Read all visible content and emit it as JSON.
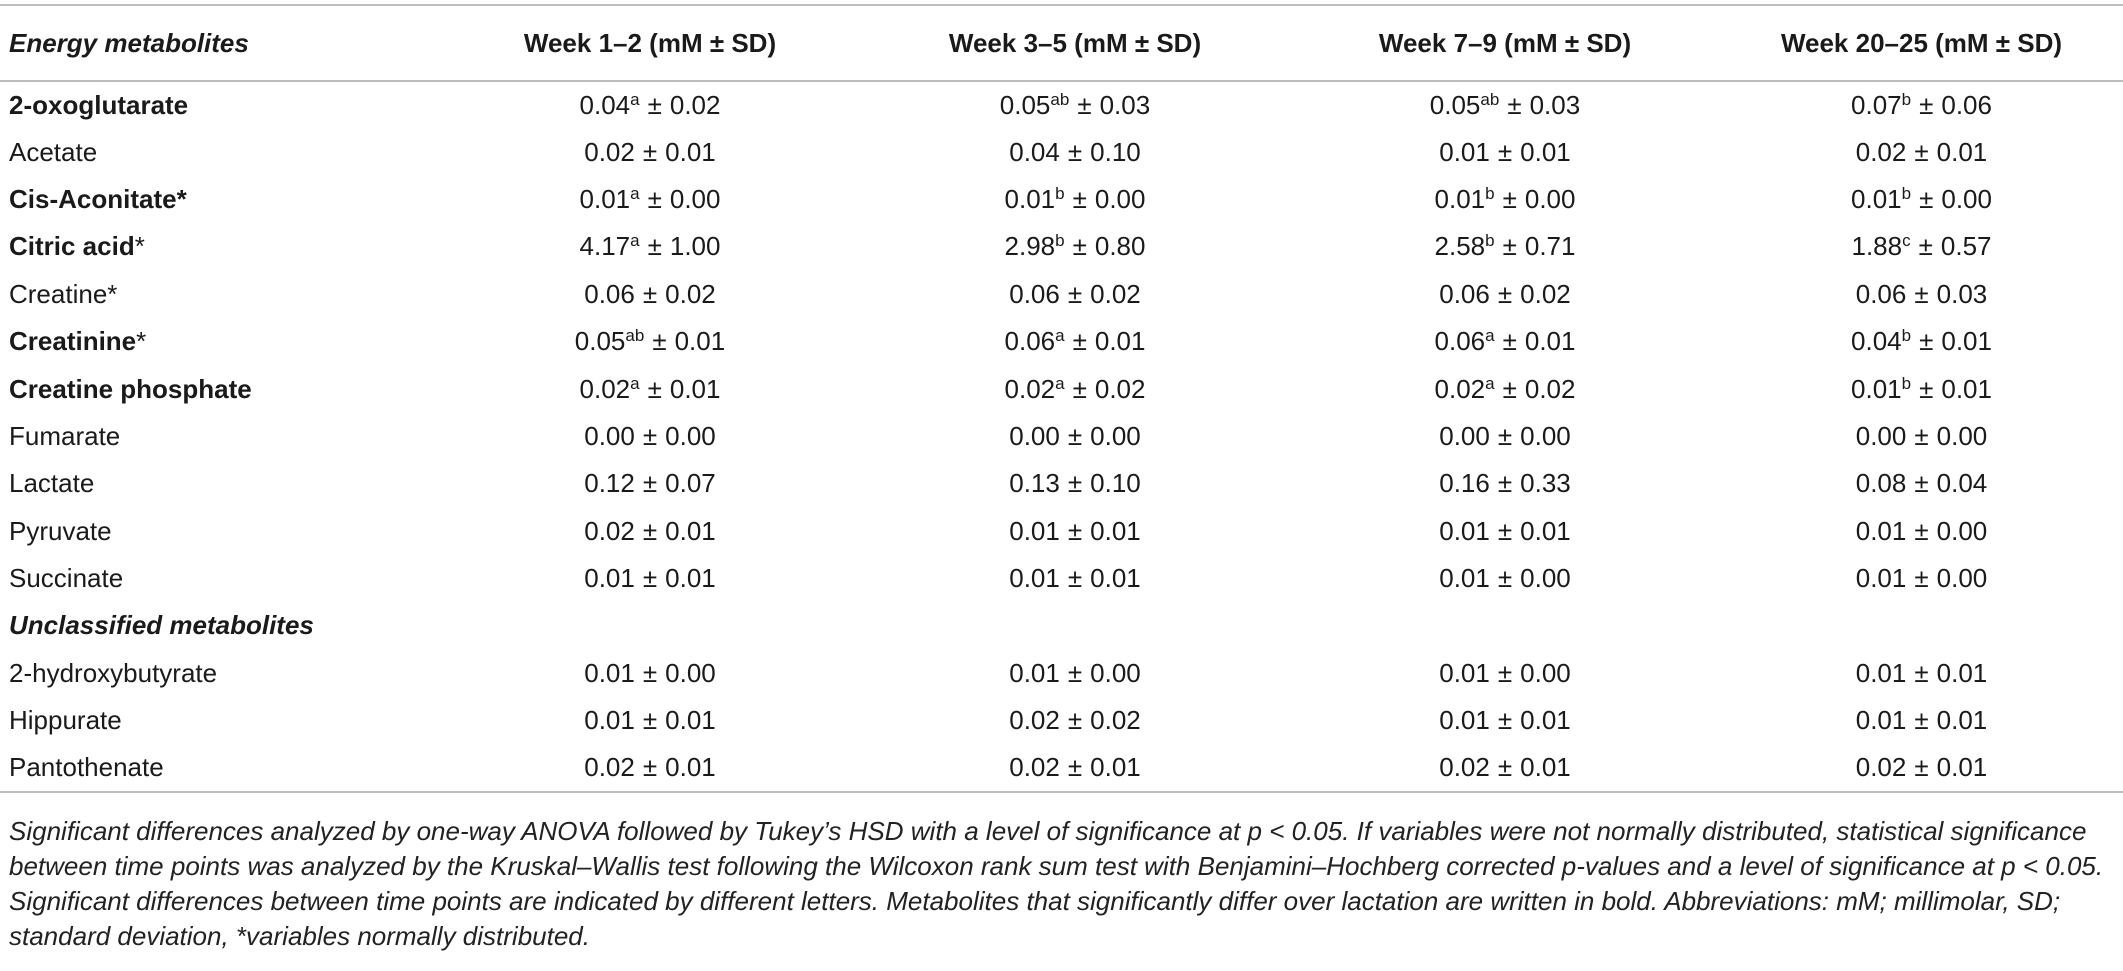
{
  "table": {
    "headers": [
      "Energy metabolites",
      "Week 1–2 (mM ± SD)",
      "Week 3–5 (mM ± SD)",
      "Week 7–9 (mM ± SD)",
      "Week 20–25 (mM ± SD)"
    ],
    "rows": [
      {
        "name": "2-oxoglutarate",
        "star": "",
        "star_bold": false,
        "bold": true,
        "section": false,
        "values": [
          {
            "mean": "0.04",
            "sup": "a",
            "sd": "0.02"
          },
          {
            "mean": "0.05",
            "sup": "ab",
            "sd": "0.03"
          },
          {
            "mean": "0.05",
            "sup": "ab",
            "sd": "0.03"
          },
          {
            "mean": "0.07",
            "sup": "b",
            "sd": "0.06"
          }
        ]
      },
      {
        "name": "Acetate",
        "star": "",
        "star_bold": false,
        "bold": false,
        "section": false,
        "values": [
          {
            "mean": "0.02",
            "sup": "",
            "sd": "0.01"
          },
          {
            "mean": "0.04",
            "sup": "",
            "sd": "0.10"
          },
          {
            "mean": "0.01",
            "sup": "",
            "sd": "0.01"
          },
          {
            "mean": "0.02",
            "sup": "",
            "sd": "0.01"
          }
        ]
      },
      {
        "name": "Cis-Aconitate",
        "star": "*",
        "star_bold": true,
        "bold": true,
        "section": false,
        "values": [
          {
            "mean": "0.01",
            "sup": "a",
            "sd": "0.00"
          },
          {
            "mean": "0.01",
            "sup": "b",
            "sd": "0.00"
          },
          {
            "mean": "0.01",
            "sup": "b",
            "sd": "0.00"
          },
          {
            "mean": "0.01",
            "sup": "b",
            "sd": "0.00"
          }
        ]
      },
      {
        "name": "Citric acid",
        "star": "*",
        "star_bold": false,
        "bold": true,
        "section": false,
        "values": [
          {
            "mean": "4.17",
            "sup": "a",
            "sd": "1.00"
          },
          {
            "mean": "2.98",
            "sup": "b",
            "sd": "0.80"
          },
          {
            "mean": "2.58",
            "sup": "b",
            "sd": "0.71"
          },
          {
            "mean": "1.88",
            "sup": "c",
            "sd": "0.57"
          }
        ]
      },
      {
        "name": "Creatine",
        "star": "*",
        "star_bold": false,
        "bold": false,
        "section": false,
        "values": [
          {
            "mean": "0.06",
            "sup": "",
            "sd": "0.02"
          },
          {
            "mean": "0.06",
            "sup": "",
            "sd": "0.02"
          },
          {
            "mean": "0.06",
            "sup": "",
            "sd": "0.02"
          },
          {
            "mean": "0.06",
            "sup": "",
            "sd": "0.03"
          }
        ]
      },
      {
        "name": "Creatinine",
        "star": "*",
        "star_bold": false,
        "bold": true,
        "section": false,
        "values": [
          {
            "mean": "0.05",
            "sup": "ab",
            "sd": "0.01"
          },
          {
            "mean": "0.06",
            "sup": "a",
            "sd": "0.01"
          },
          {
            "mean": "0.06",
            "sup": "a",
            "sd": "0.01"
          },
          {
            "mean": "0.04",
            "sup": "b",
            "sd": "0.01"
          }
        ]
      },
      {
        "name": "Creatine phosphate",
        "star": "",
        "star_bold": false,
        "bold": true,
        "section": false,
        "values": [
          {
            "mean": "0.02",
            "sup": "a",
            "sd": "0.01"
          },
          {
            "mean": "0.02",
            "sup": "a",
            "sd": "0.02"
          },
          {
            "mean": "0.02",
            "sup": "a",
            "sd": "0.02"
          },
          {
            "mean": "0.01",
            "sup": "b",
            "sd": "0.01"
          }
        ]
      },
      {
        "name": "Fumarate",
        "star": "",
        "star_bold": false,
        "bold": false,
        "section": false,
        "values": [
          {
            "mean": "0.00",
            "sup": "",
            "sd": "0.00"
          },
          {
            "mean": "0.00",
            "sup": "",
            "sd": "0.00"
          },
          {
            "mean": "0.00",
            "sup": "",
            "sd": "0.00"
          },
          {
            "mean": "0.00",
            "sup": "",
            "sd": "0.00"
          }
        ]
      },
      {
        "name": "Lactate",
        "star": "",
        "star_bold": false,
        "bold": false,
        "section": false,
        "values": [
          {
            "mean": "0.12",
            "sup": "",
            "sd": "0.07"
          },
          {
            "mean": "0.13",
            "sup": "",
            "sd": "0.10"
          },
          {
            "mean": "0.16",
            "sup": "",
            "sd": "0.33"
          },
          {
            "mean": "0.08",
            "sup": "",
            "sd": "0.04"
          }
        ]
      },
      {
        "name": "Pyruvate",
        "star": "",
        "star_bold": false,
        "bold": false,
        "section": false,
        "values": [
          {
            "mean": "0.02",
            "sup": "",
            "sd": "0.01"
          },
          {
            "mean": "0.01",
            "sup": "",
            "sd": "0.01"
          },
          {
            "mean": "0.01",
            "sup": "",
            "sd": "0.01"
          },
          {
            "mean": "0.01",
            "sup": "",
            "sd": "0.00"
          }
        ]
      },
      {
        "name": "Succinate",
        "star": "",
        "star_bold": false,
        "bold": false,
        "section": false,
        "values": [
          {
            "mean": "0.01",
            "sup": "",
            "sd": "0.01"
          },
          {
            "mean": "0.01",
            "sup": "",
            "sd": "0.01"
          },
          {
            "mean": "0.01",
            "sup": "",
            "sd": "0.00"
          },
          {
            "mean": "0.01",
            "sup": "",
            "sd": "0.00"
          }
        ]
      },
      {
        "name": "Unclassified metabolites",
        "star": "",
        "star_bold": false,
        "bold": true,
        "section": true,
        "values": []
      },
      {
        "name": "2-hydroxybutyrate",
        "star": "",
        "star_bold": false,
        "bold": false,
        "section": false,
        "values": [
          {
            "mean": "0.01",
            "sup": "",
            "sd": "0.00"
          },
          {
            "mean": "0.01",
            "sup": "",
            "sd": "0.00"
          },
          {
            "mean": "0.01",
            "sup": "",
            "sd": "0.00"
          },
          {
            "mean": "0.01",
            "sup": "",
            "sd": "0.01"
          }
        ]
      },
      {
        "name": "Hippurate",
        "star": "",
        "star_bold": false,
        "bold": false,
        "section": false,
        "values": [
          {
            "mean": "0.01",
            "sup": "",
            "sd": "0.01"
          },
          {
            "mean": "0.02",
            "sup": "",
            "sd": "0.02"
          },
          {
            "mean": "0.01",
            "sup": "",
            "sd": "0.01"
          },
          {
            "mean": "0.01",
            "sup": "",
            "sd": "0.01"
          }
        ]
      },
      {
        "name": "Pantothenate",
        "star": "",
        "star_bold": false,
        "bold": false,
        "section": false,
        "values": [
          {
            "mean": "0.02",
            "sup": "",
            "sd": "0.01"
          },
          {
            "mean": "0.02",
            "sup": "",
            "sd": "0.01"
          },
          {
            "mean": "0.02",
            "sup": "",
            "sd": "0.01"
          },
          {
            "mean": "0.02",
            "sup": "",
            "sd": "0.01"
          }
        ]
      }
    ],
    "pm_symbol": "±"
  },
  "footnote": "Significant differences analyzed by one-way ANOVA followed by Tukey’s HSD with a level of significance at p < 0.05. If variables were not normally distributed, statistical significance between time points was analyzed by the Kruskal–Wallis test following the Wilcoxon rank sum test with Benjamini–Hochberg corrected p-values and a level of significance at p < 0.05. Significant differences between time points are indicated by different letters. Metabolites that significantly differ over lactation are written in bold. Abbreviations: mM; millimolar, SD; standard deviation, *variables normally distributed.",
  "colors": {
    "rule": "#bdbdbd",
    "text": "#1a1a1a"
  }
}
